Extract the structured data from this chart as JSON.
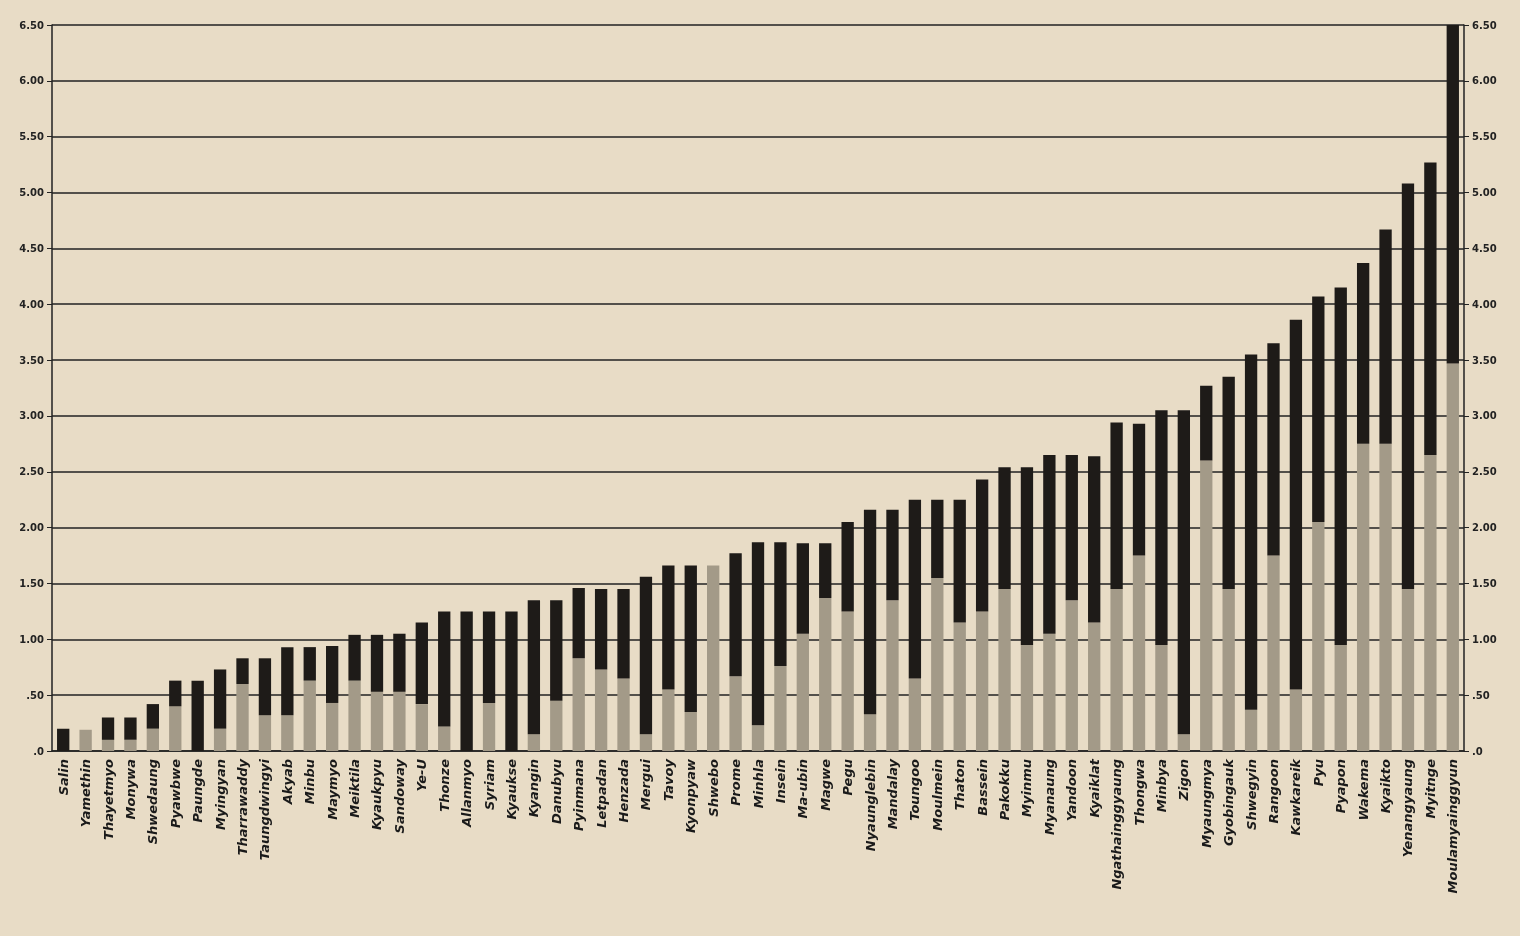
{
  "chart_data": {
    "type": "bar",
    "stacked": true,
    "grid": "y",
    "categories": [
      "Salin",
      "Yamethin",
      "Thayetmyo",
      "Monywa",
      "Shwedaung",
      "Pyawbwe",
      "Paungde",
      "Myingyan",
      "Tharrawaddy",
      "Taungdwingyi",
      "Akyab",
      "Minbu",
      "Maymyo",
      "Meiktila",
      "Kyaukpyu",
      "Sandoway",
      "Ye-U",
      "Thonze",
      "Allanmyo",
      "Syriam",
      "Kyaukse",
      "Kyangin",
      "Danubyu",
      "Pyinmana",
      "Letpadan",
      "Henzada",
      "Mergui",
      "Tavoy",
      "Kyonpyaw",
      "Shwebo",
      "Prome",
      "Minhla",
      "Insein",
      "Ma-ubin",
      "Magwe",
      "Pegu",
      "Nyaunglebin",
      "Mandalay",
      "Toungoo",
      "Moulmein",
      "Thaton",
      "Bassein",
      "Pakokku",
      "Myinmu",
      "Myanaung",
      "Yandoon",
      "Kyaiklat",
      "Ngathainggyaung",
      "Thongwa",
      "Minbya",
      "Zigon",
      "Myaungmya",
      "Gyobingauk",
      "Shwegyin",
      "Rangoon",
      "Kawkareik",
      "Pyu",
      "Pyapon",
      "Wakema",
      "Kyaikto",
      "Yenangyaung",
      "Myitnge",
      "Moulamyainggyun"
    ],
    "series": [
      {
        "color": "#a39a88",
        "values": [
          0,
          0.19,
          0.1,
          0.1,
          0.2,
          0.4,
          0,
          0.2,
          0.6,
          0.32,
          0.32,
          0.63,
          0.43,
          0.63,
          0.53,
          0.53,
          0.42,
          0.22,
          0,
          0.43,
          0,
          0.15,
          0.45,
          0.83,
          0.73,
          0.65,
          0.15,
          0.55,
          0.35,
          1.66,
          0.67,
          0.23,
          0.76,
          1.05,
          1.37,
          1.25,
          0.33,
          1.35,
          0.65,
          1.55,
          1.15,
          1.25,
          1.45,
          0.95,
          1.05,
          1.35,
          1.15,
          1.45,
          1.75,
          0.95,
          0.15,
          2.6,
          1.45,
          0.37,
          1.75,
          0.55,
          2.05,
          0.95,
          2.75,
          2.75,
          1.45,
          2.65,
          3.47
        ]
      },
      {
        "color": "#1e1b18",
        "values": [
          0.2,
          0,
          0.2,
          0.2,
          0.22,
          0.23,
          0.63,
          0.53,
          0.23,
          0.51,
          0.61,
          0.3,
          0.51,
          0.41,
          0.51,
          0.52,
          0.73,
          1.03,
          1.25,
          0.82,
          1.25,
          1.2,
          0.9,
          0.63,
          0.72,
          0.8,
          1.41,
          1.11,
          1.31,
          0,
          1.1,
          1.64,
          1.11,
          0.81,
          0.49,
          0.8,
          1.83,
          0.81,
          1.6,
          0.7,
          1.1,
          1.18,
          1.09,
          1.59,
          1.6,
          1.3,
          1.49,
          1.49,
          1.18,
          2.1,
          2.9,
          0.67,
          1.9,
          3.18,
          1.9,
          3.31,
          2.02,
          3.2,
          1.62,
          1.92,
          3.63,
          2.62,
          3.03
        ]
      }
    ],
    "ylim": [
      0,
      6.5
    ],
    "yticks": [
      {
        "value": 0,
        "label": ".0"
      },
      {
        "value": 0.5,
        "label": ".50"
      },
      {
        "value": 1,
        "label": "1.00"
      },
      {
        "value": 1.5,
        "label": "1.50"
      },
      {
        "value": 2,
        "label": "2.00"
      },
      {
        "value": 2.5,
        "label": "2.50"
      },
      {
        "value": 3,
        "label": "3.00"
      },
      {
        "value": 3.5,
        "label": "3.50"
      },
      {
        "value": 4,
        "label": "4.00"
      },
      {
        "value": 4.5,
        "label": "4.50"
      },
      {
        "value": 5,
        "label": "5.00"
      },
      {
        "value": 5.5,
        "label": "5.50"
      },
      {
        "value": 6,
        "label": "6.00"
      },
      {
        "value": 6.5,
        "label": "6.50"
      }
    ],
    "y2lim": [
      0,
      6.5
    ],
    "y2ticks": [
      {
        "value": 0,
        "label": ".0"
      },
      {
        "value": 0.5,
        "label": ".50"
      },
      {
        "value": 1,
        "label": "1.00"
      },
      {
        "value": 1.5,
        "label": "1.50"
      },
      {
        "value": 2,
        "label": "2.00"
      },
      {
        "value": 2.5,
        "label": "2.50"
      },
      {
        "value": 3,
        "label": "3.00"
      },
      {
        "value": 3.5,
        "label": "3.50"
      },
      {
        "value": 4,
        "label": "4.00"
      },
      {
        "value": 4.5,
        "label": "4.50"
      },
      {
        "value": 5,
        "label": "5.00"
      },
      {
        "value": 5.5,
        "label": "5.50"
      },
      {
        "value": 6,
        "label": "6.00"
      },
      {
        "value": 6.5,
        "label": "6.50"
      }
    ]
  }
}
